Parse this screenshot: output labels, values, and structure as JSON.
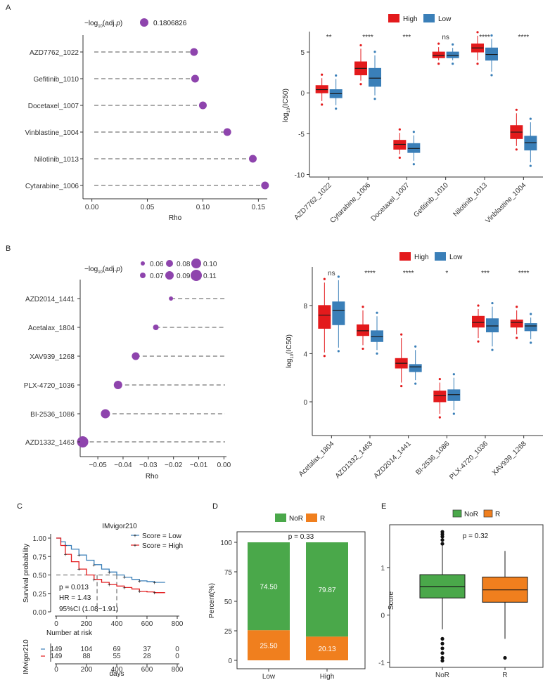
{
  "panels": {
    "A": "A",
    "B": "B",
    "C": "C",
    "D": "D",
    "E": "E"
  },
  "colors": {
    "high": "#e31a1c",
    "low": "#3a7fb8",
    "dot": "#8e44ad",
    "nor": "#4aa84a",
    "r": "#f07f1e"
  },
  "chart_data": [
    {
      "id": "A_left",
      "type": "scatter",
      "xlabel": "Rho",
      "legend_title": "−log10(adj.p)",
      "legend_value": "0.1806826",
      "drugs": [
        "AZD7762_1022",
        "Gefitinib_1010",
        "Docetaxel_1007",
        "Vinblastine_1004",
        "Nilotinib_1013",
        "Cytarabine_1006"
      ],
      "rho": [
        0.092,
        0.093,
        0.1,
        0.122,
        0.145,
        0.156
      ],
      "xlim": [
        -0.008,
        0.158
      ],
      "xticks": [
        "0.00",
        "0.05",
        "0.10",
        "0.15"
      ]
    },
    {
      "id": "A_right",
      "type": "box",
      "ylabel": "log10(IC50)",
      "ylim": [
        -10.3,
        7.5
      ],
      "yticks": [
        "5",
        "0",
        "-5",
        "-10"
      ],
      "legend": [
        "High",
        "Low"
      ],
      "categories": [
        "AZD7762_1022",
        "Cytarabine_1006",
        "Docetaxel_1007",
        "Gefitinib_1010",
        "Nilotinib_1013",
        "Vinblastine_1004"
      ],
      "significance": [
        "**",
        "****",
        "***",
        "ns",
        "****",
        "****"
      ],
      "high": [
        [
          -1.0,
          0.0,
          0.4,
          0.9,
          1.8
        ],
        [
          1.5,
          2.2,
          3.0,
          3.8,
          5.4
        ],
        [
          -7.5,
          -6.9,
          -6.3,
          -5.8,
          -4.9
        ],
        [
          4.0,
          4.3,
          4.6,
          5.0,
          5.6
        ],
        [
          4.0,
          5.0,
          5.5,
          6.0,
          7.0
        ],
        [
          -6.5,
          -5.6,
          -4.8,
          -4.0,
          -2.5
        ]
      ],
      "low": [
        [
          -1.5,
          -0.6,
          -0.1,
          0.4,
          1.7
        ],
        [
          -0.3,
          0.8,
          1.8,
          3.0,
          4.6
        ],
        [
          -8.3,
          -7.3,
          -6.8,
          -6.2,
          -5.2
        ],
        [
          4.0,
          4.3,
          4.6,
          5.0,
          5.5
        ],
        [
          2.6,
          4.0,
          4.7,
          5.5,
          6.6
        ],
        [
          -8.5,
          -7.0,
          -6.1,
          -5.3,
          -3.6
        ]
      ]
    },
    {
      "id": "B_left",
      "type": "scatter",
      "xlabel": "Rho",
      "legend_title": "−log10(adj.p)",
      "size_legend": [
        "0.06",
        "0.07",
        "0.08",
        "0.09",
        "0.10",
        "0.11"
      ],
      "drugs": [
        "AZD2014_1441",
        "Acetalax_1804",
        "XAV939_1268",
        "PLX-4720_1036",
        "BI-2536_1086",
        "AZD1332_1463"
      ],
      "rho": [
        -0.021,
        -0.027,
        -0.035,
        -0.042,
        -0.047,
        -0.056
      ],
      "padj": [
        0.06,
        0.07,
        0.085,
        0.09,
        0.095,
        0.11
      ],
      "xlim": [
        -0.057,
        0.001
      ],
      "xticks": [
        "−0.05",
        "−0.04",
        "−0.03",
        "−0.02",
        "−0.01",
        "0.00"
      ]
    },
    {
      "id": "B_right",
      "type": "box",
      "ylabel": "log10(IC50)",
      "ylim": [
        -2.8,
        11.2
      ],
      "yticks": [
        "8",
        "4",
        "0"
      ],
      "legend": [
        "High",
        "Low"
      ],
      "categories": [
        "Acetalax_1804",
        "AZD1332_1463",
        "AZD2014_1441",
        "BI-2536_1086",
        "PLX-4720_1036",
        "XAV939_1268"
      ],
      "significance": [
        "ns",
        "****",
        "****",
        "*",
        "***",
        "****"
      ],
      "high": [
        [
          4.1,
          6.1,
          7.2,
          8.0,
          9.9
        ],
        [
          4.7,
          5.5,
          5.9,
          6.4,
          7.6
        ],
        [
          1.6,
          2.8,
          3.2,
          3.6,
          5.3
        ],
        [
          -1.0,
          0.0,
          0.5,
          0.9,
          1.6
        ],
        [
          5.3,
          6.2,
          6.6,
          7.1,
          7.7
        ],
        [
          5.6,
          6.2,
          6.6,
          6.8,
          7.6
        ]
      ],
      "low": [
        [
          4.5,
          6.4,
          7.6,
          8.3,
          10.1
        ],
        [
          4.3,
          5.0,
          5.4,
          5.9,
          7.1
        ],
        [
          1.8,
          2.5,
          2.9,
          3.1,
          4.3
        ],
        [
          -0.7,
          0.1,
          0.6,
          1.0,
          2.0
        ],
        [
          4.6,
          5.8,
          6.3,
          6.9,
          7.9
        ],
        [
          5.2,
          5.9,
          6.3,
          6.5,
          7.0
        ]
      ]
    },
    {
      "id": "C",
      "type": "line",
      "title": "IMvigor210",
      "xlabel": "days",
      "ylabel": "Survival probability",
      "xlim": [
        0,
        800
      ],
      "ylim": [
        0,
        1
      ],
      "xticks": [
        "0",
        "200",
        "400",
        "600",
        "800"
      ],
      "yticks": [
        "1.00",
        "0.75",
        "0.50",
        "0.25",
        "0.00"
      ],
      "series": [
        {
          "name": "Score = Low",
          "x": [
            0,
            30,
            60,
            100,
            150,
            200,
            250,
            300,
            350,
            400,
            450,
            500,
            550,
            600,
            650,
            720
          ],
          "y": [
            1.0,
            0.95,
            0.9,
            0.85,
            0.77,
            0.7,
            0.64,
            0.58,
            0.54,
            0.5,
            0.47,
            0.44,
            0.42,
            0.41,
            0.4,
            0.4
          ]
        },
        {
          "name": "Score = High",
          "x": [
            0,
            30,
            60,
            100,
            150,
            200,
            250,
            300,
            350,
            400,
            450,
            500,
            550,
            600,
            650,
            720
          ],
          "y": [
            1.0,
            0.9,
            0.78,
            0.68,
            0.58,
            0.5,
            0.44,
            0.4,
            0.37,
            0.35,
            0.33,
            0.31,
            0.28,
            0.27,
            0.26,
            0.26
          ]
        }
      ],
      "annotations": {
        "p": "p = 0.013",
        "hr": "HR = 1.43",
        "ci": "95%CI (1.08−1.91)"
      },
      "risk_table": {
        "title": "Number at risk",
        "ylabel": "IMvigor210",
        "low": [
          "149",
          "104",
          "69",
          "37",
          "0"
        ],
        "high": [
          "149",
          "88",
          "55",
          "28",
          "0"
        ]
      }
    },
    {
      "id": "D",
      "type": "bar",
      "stacked": true,
      "ylabel": "Percent(%)",
      "ptext": "p = 0.33",
      "categories": [
        "Low",
        "High"
      ],
      "series": [
        {
          "name": "NoR",
          "values": [
            74.5,
            79.87
          ]
        },
        {
          "name": "R",
          "values": [
            25.5,
            20.13
          ]
        }
      ],
      "labels": {
        "nor": [
          "74.50",
          "79.87"
        ],
        "r": [
          "25.50",
          "20.13"
        ]
      },
      "ylim": [
        0,
        100
      ],
      "yticks": [
        "100",
        "75",
        "50",
        "25",
        "0"
      ]
    },
    {
      "id": "E",
      "type": "box",
      "ylabel": "Score",
      "ptext": "p = 0.32",
      "categories": [
        "NoR",
        "R"
      ],
      "legend": [
        "NoR",
        "R"
      ],
      "boxes": [
        [
          -0.3,
          0.36,
          0.6,
          0.85,
          1.5
        ],
        [
          -0.5,
          0.27,
          0.53,
          0.8,
          1.35
        ]
      ],
      "outliers": [
        [
          -0.5,
          -0.6,
          -0.7,
          -0.8,
          -0.9,
          -0.96,
          1.5,
          1.58,
          1.65,
          1.7,
          1.75
        ],
        [
          -0.9
        ]
      ],
      "ylim": [
        -1.1,
        1.9
      ],
      "yticks": [
        "1",
        "0",
        "-1"
      ]
    }
  ]
}
